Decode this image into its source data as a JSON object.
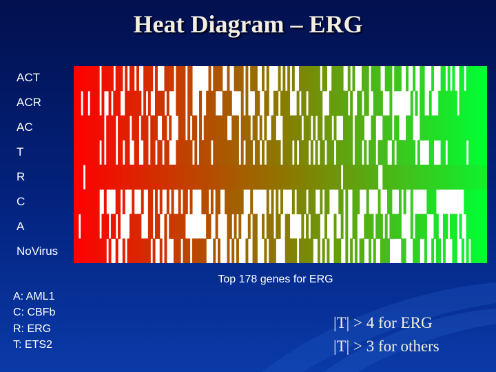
{
  "slide": {
    "title": "Heat Diagram – ERG"
  },
  "row_labels": [
    "ACT",
    "ACR",
    "AC",
    "T",
    "R",
    "C",
    "A",
    "NoVirus"
  ],
  "x_axis_label": "Top 178 genes for ERG",
  "legend": [
    "A: AML1",
    "C: CBFb",
    "R: ERG",
    "T: ETS2"
  ],
  "criteria": [
    "|T|  > 4 for ERG",
    "|T|  > 3 for others"
  ],
  "chart_data": {
    "type": "heatmap",
    "rows": [
      "ACT",
      "ACR",
      "AC",
      "T",
      "R",
      "C",
      "A",
      "NoVirus"
    ],
    "n_genes": 178,
    "xlabel": "Top 178 genes for ERG",
    "colors": {
      "up": "#ff0000",
      "mid": "#8a7a00",
      "down": "#00ff33",
      "not_significant": "#ffffff"
    }
  }
}
